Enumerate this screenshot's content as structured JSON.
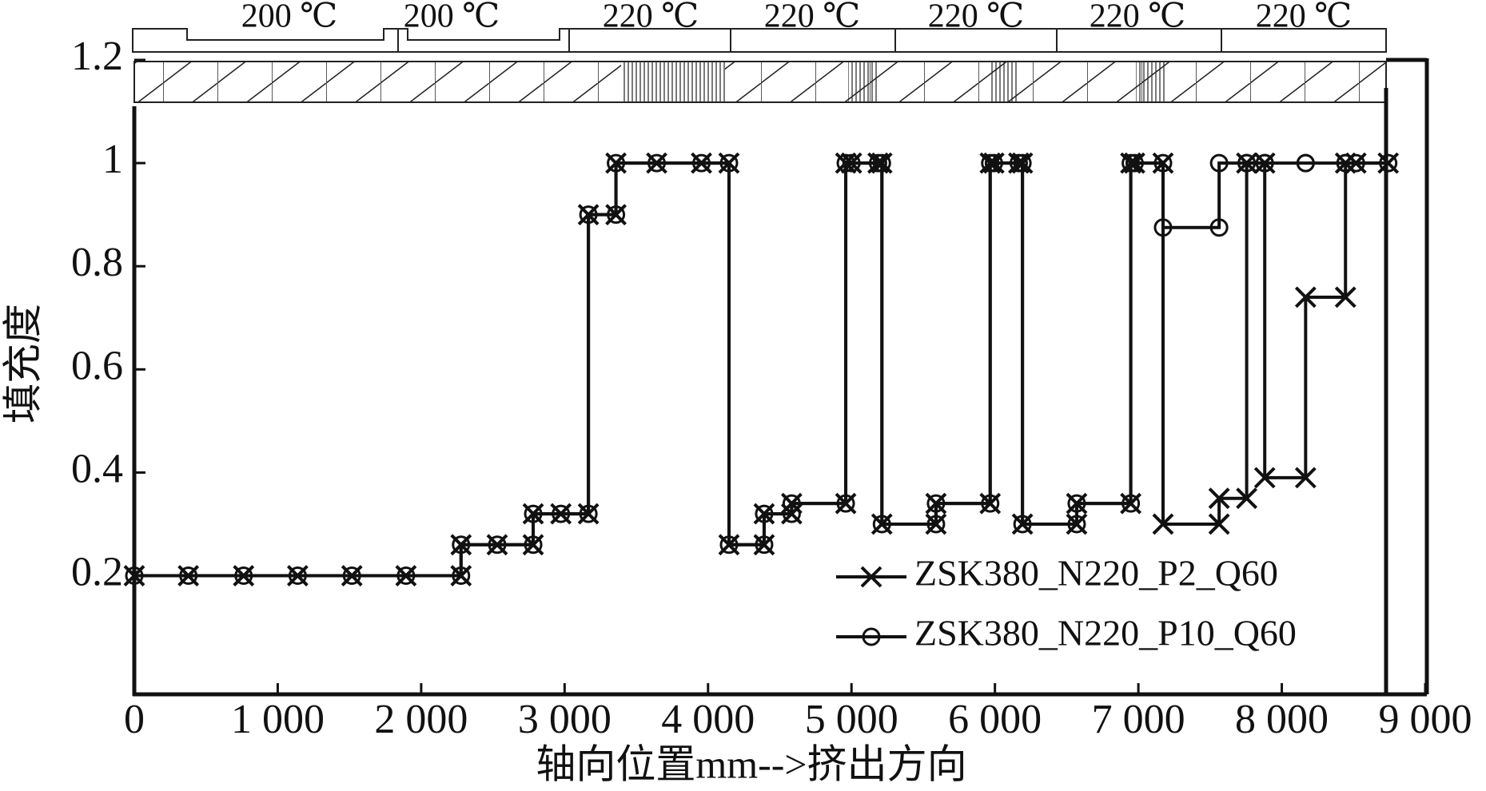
{
  "chart_data": {
    "type": "line",
    "step": true,
    "x_label": "轴向位置mm-->挤出方向",
    "y_label": "填充度",
    "annotations": [
      "200 ℃",
      "200 ℃",
      "220 ℃",
      "220 ℃",
      "220 ℃",
      "220 ℃",
      "220 ℃"
    ],
    "x": [
      0,
      377,
      762,
      1139,
      1517,
      1894,
      2278,
      2278,
      2530,
      2781,
      2781,
      2974,
      3166,
      3166,
      3358,
      3358,
      3642,
      3954,
      4146,
      4146,
      4391,
      4391,
      4583,
      4583,
      4960,
      4960,
      5000,
      5185,
      5212,
      5212,
      5589,
      5589,
      5967,
      5967,
      5993,
      6166,
      6192,
      6192,
      6570,
      6570,
      6947,
      6947,
      6974,
      7172,
      7172,
      7563,
      7563,
      7755,
      7755,
      7881,
      7881,
      8166,
      8166,
      8444,
      8444,
      8517,
      8742
    ],
    "series": [
      {
        "name": "ZSK380_N220_P2_Q60",
        "color": "#111111",
        "marker": "x",
        "values": [
          0.2,
          0.2,
          0.2,
          0.2,
          0.2,
          0.2,
          0.2,
          0.26,
          0.26,
          0.26,
          0.32,
          0.32,
          0.32,
          0.9,
          0.9,
          1,
          1,
          1,
          1,
          0.26,
          0.26,
          0.32,
          0.32,
          0.34,
          0.34,
          1,
          1,
          1,
          1,
          0.3,
          0.3,
          0.34,
          0.34,
          1,
          1,
          1,
          1,
          0.3,
          0.3,
          0.34,
          0.34,
          1,
          1,
          1,
          0.3,
          0.3,
          0.35,
          0.35,
          1,
          1,
          0.39,
          0.39,
          0.74,
          0.74,
          1,
          1,
          1
        ]
      },
      {
        "name": "ZSK380_N220_P10_Q60",
        "color": "#111111",
        "marker": "o",
        "values": [
          0.2,
          0.2,
          0.2,
          0.2,
          0.2,
          0.2,
          0.2,
          0.26,
          0.26,
          0.26,
          0.32,
          0.32,
          0.32,
          0.9,
          0.9,
          1,
          1,
          1,
          1,
          0.26,
          0.26,
          0.32,
          0.32,
          0.34,
          0.34,
          1,
          1,
          1,
          1,
          0.3,
          0.3,
          0.34,
          0.34,
          1,
          1,
          1,
          1,
          0.3,
          0.3,
          0.34,
          0.34,
          1,
          1,
          1,
          0.875,
          0.875,
          1,
          1,
          1,
          1,
          1,
          1,
          1,
          1,
          1,
          1,
          1
        ]
      }
    ],
    "xlim": [
      0,
      9000
    ],
    "ylim": [
      -0.03,
      1.2
    ],
    "xticks": [
      0,
      {
        "value": 1000,
        "label": "1 000"
      },
      {
        "value": 2000,
        "label": "2 000"
      },
      {
        "value": 3000,
        "label": "3 000"
      },
      {
        "value": 4000,
        "label": "4 000"
      },
      {
        "value": 5000,
        "label": "5 000"
      },
      {
        "value": 6000,
        "label": "6 000"
      },
      {
        "value": 7000,
        "label": "7 000"
      },
      {
        "value": 8000,
        "label": "8 000"
      },
      {
        "value": 9000,
        "label": "9 000"
      }
    ],
    "yticks": [
      0.2,
      0.4,
      0.6,
      0.8,
      1,
      1.2
    ],
    "grid": false,
    "legend": "lower right"
  }
}
